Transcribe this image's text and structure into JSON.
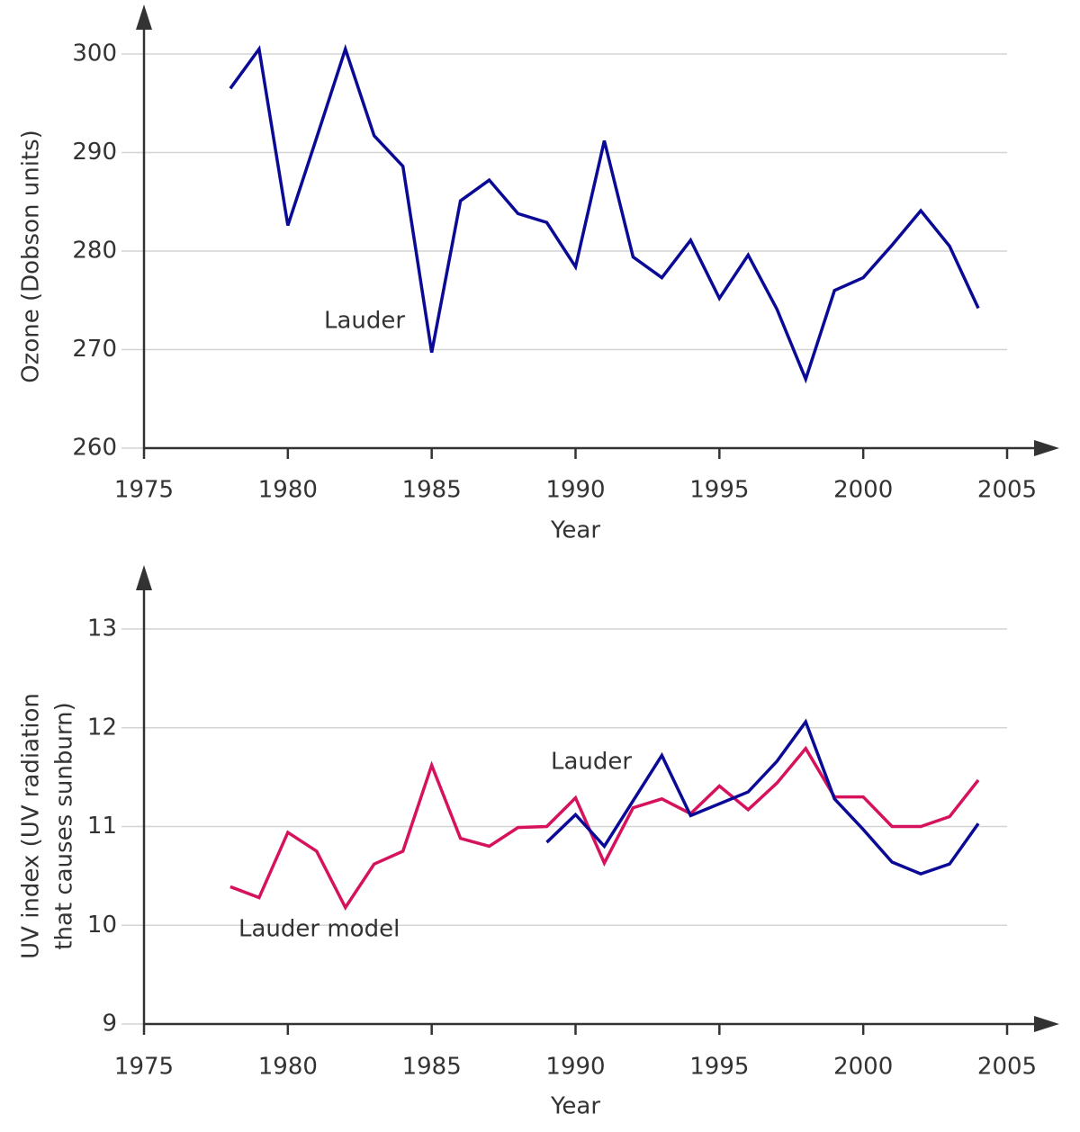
{
  "chart_data": [
    {
      "type": "line",
      "x_label": "Year",
      "y_label": "Ozone (Dobson units)",
      "x": [
        1978,
        1979,
        1980,
        1981,
        1982,
        1983,
        1984,
        1985,
        1986,
        1987,
        1988,
        1989,
        1990,
        1991,
        1992,
        1993,
        1994,
        1995,
        1996,
        1997,
        1998,
        1999,
        2000,
        2001,
        2002,
        2003,
        2004
      ],
      "series": [
        {
          "name": "Lauder",
          "color": "#0a0a96",
          "values": [
            296.5,
            300.5,
            282.6,
            291.5,
            300.5,
            291.7,
            288.6,
            269.7,
            285.1,
            287.2,
            283.8,
            282.9,
            278.4,
            291.2,
            279.4,
            277.3,
            281.1,
            275.2,
            279.6,
            274.1,
            267.0,
            276.0,
            277.3,
            280.6,
            284.1,
            280.5,
            274.2
          ]
        }
      ],
      "xlim": [
        1975,
        2005
      ],
      "xticks": [
        1975,
        1980,
        1985,
        1990,
        1995,
        2000,
        2005
      ],
      "ylim": [
        260,
        300
      ],
      "yticks": [
        260,
        270,
        280,
        290,
        300
      ],
      "grid": true
    },
    {
      "type": "line",
      "x_label": "Year",
      "y_label": [
        "UV index (UV radiation",
        "that causes sunburn)"
      ],
      "x": [
        1978,
        1979,
        1980,
        1981,
        1982,
        1983,
        1984,
        1985,
        1986,
        1987,
        1988,
        1989,
        1990,
        1991,
        1992,
        1993,
        1994,
        1995,
        1996,
        1997,
        1998,
        1999,
        2000,
        2001,
        2002,
        2003,
        2004
      ],
      "series": [
        {
          "name": "Lauder model",
          "color": "#d6125d",
          "values": [
            10.39,
            10.28,
            10.94,
            10.75,
            10.18,
            10.62,
            10.75,
            11.62,
            10.88,
            10.8,
            10.99,
            11.0,
            11.29,
            10.63,
            11.19,
            11.28,
            11.13,
            11.41,
            11.17,
            11.44,
            11.79,
            11.3,
            11.3,
            11.0,
            11.0,
            11.1,
            11.47
          ]
        },
        {
          "name": "Lauder",
          "color": "#0a0a96",
          "values": [
            null,
            null,
            null,
            null,
            null,
            null,
            null,
            null,
            null,
            null,
            null,
            10.84,
            11.12,
            10.8,
            11.26,
            11.72,
            11.11,
            11.23,
            11.35,
            11.66,
            12.06,
            11.28,
            10.97,
            10.64,
            10.52,
            10.62,
            11.03
          ]
        }
      ],
      "xlim": [
        1975,
        2005
      ],
      "xticks": [
        1975,
        1980,
        1985,
        1990,
        1995,
        2000,
        2005
      ],
      "ylim": [
        9,
        13
      ],
      "yticks": [
        9,
        10,
        11,
        12,
        13
      ],
      "grid": true
    }
  ]
}
